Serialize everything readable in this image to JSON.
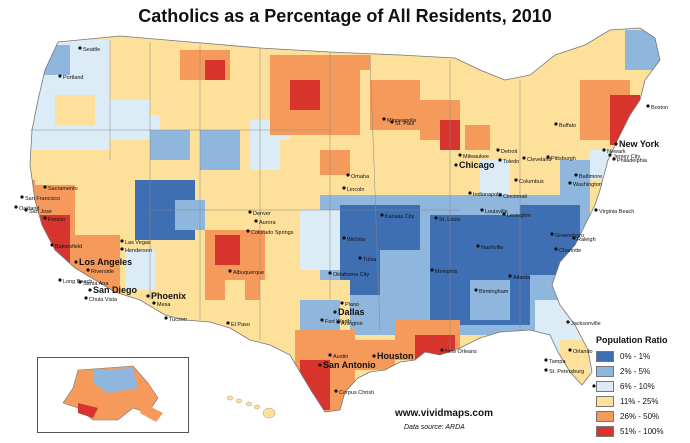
{
  "title": "Catholics as a Percentage of All Residents, 2010",
  "legend": {
    "title": "Population Ratio",
    "items": [
      {
        "label": "0% - 1%",
        "color": "#3f6fb3"
      },
      {
        "label": "2% - 5%",
        "color": "#8fb6dc"
      },
      {
        "label": "6% - 10%",
        "color": "#dcecf6"
      },
      {
        "label": "11% - 25%",
        "color": "#fde09a"
      },
      {
        "label": "26% - 50%",
        "color": "#f59a5a"
      },
      {
        "label": "51% - 100%",
        "color": "#d7342d"
      }
    ]
  },
  "credit": "www.vividmaps.com",
  "source": "Data source: ARDA",
  "cities": [
    "Seattle",
    "Portland",
    "Sacramento",
    "San Francisco",
    "San Jose",
    "Oakland",
    "Fresno",
    "Bakersfield",
    "Los Angeles",
    "Riverside",
    "Long Beach",
    "Santa Ana",
    "San Diego",
    "Chula Vista",
    "Las Vegas",
    "Henderson",
    "Phoenix",
    "Mesa",
    "Tucson",
    "Albuquerque",
    "El Paso",
    "Denver",
    "Aurora",
    "Colorado Springs",
    "Wichita",
    "Tulsa",
    "Oklahoma City",
    "Dallas",
    "Fort Worth",
    "Arlington",
    "Plano",
    "Austin",
    "San Antonio",
    "Houston",
    "Corpus Christi",
    "Kansas City",
    "Omaha",
    "Lincoln",
    "Minneapolis",
    "St. Paul",
    "Milwaukee",
    "Chicago",
    "Detroit",
    "Toledo",
    "Cleveland",
    "Columbus",
    "Cincinnati",
    "Indianapolis",
    "Louisville",
    "Lexington",
    "St. Louis",
    "Nashville",
    "Memphis",
    "Atlanta",
    "Charlotte",
    "Greensboro",
    "Raleigh",
    "Virginia Beach",
    "Washington",
    "Baltimore",
    "Philadelphia",
    "New York",
    "Newark",
    "Jersey City",
    "Boston",
    "Buffalo",
    "Pittsburgh",
    "New Orleans",
    "Jacksonville",
    "Tampa",
    "Orlando",
    "Miami",
    "St. Petersburg",
    "Birmingham"
  ]
}
